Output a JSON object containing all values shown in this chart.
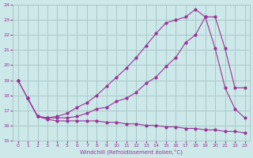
{
  "xlabel": "Windchill (Refroidissement éolien,°C)",
  "ylabel": "",
  "xlim": [
    -0.5,
    23.5
  ],
  "ylim": [
    15,
    24
  ],
  "xticks": [
    0,
    1,
    2,
    3,
    4,
    5,
    6,
    7,
    8,
    9,
    10,
    11,
    12,
    13,
    14,
    15,
    16,
    17,
    18,
    19,
    20,
    21,
    22,
    23
  ],
  "yticks": [
    15,
    16,
    17,
    18,
    19,
    20,
    21,
    22,
    23,
    24
  ],
  "bg_color": "#cce8e8",
  "line_color": "#993399",
  "grid_color": "#aac8c8",
  "line1_x": [
    0,
    1,
    2,
    3,
    4,
    5,
    6,
    7,
    8,
    9,
    10,
    11,
    12,
    13,
    14,
    15,
    16,
    17,
    18,
    19,
    20,
    21,
    22,
    23
  ],
  "line1_y": [
    19.0,
    17.8,
    16.6,
    16.4,
    16.3,
    16.3,
    16.3,
    16.3,
    16.3,
    16.2,
    16.2,
    16.1,
    16.1,
    16.0,
    16.0,
    15.9,
    15.9,
    15.8,
    15.8,
    15.7,
    15.7,
    15.6,
    15.6,
    15.5
  ],
  "line2_x": [
    0,
    1,
    2,
    3,
    4,
    5,
    6,
    7,
    8,
    9,
    10,
    11,
    12,
    13,
    14,
    15,
    16,
    17,
    18,
    19,
    20,
    21,
    22,
    23
  ],
  "line2_y": [
    19.0,
    17.8,
    16.6,
    16.5,
    16.5,
    16.5,
    16.6,
    16.8,
    17.1,
    17.2,
    17.6,
    17.8,
    18.2,
    18.8,
    19.2,
    19.9,
    20.5,
    21.5,
    22.0,
    23.2,
    21.1,
    18.5,
    17.1,
    16.5
  ],
  "line3_x": [
    1,
    2,
    3,
    4,
    5,
    6,
    7,
    8,
    9,
    10,
    11,
    12,
    13,
    14,
    15,
    16,
    17,
    18,
    19,
    20,
    21,
    22,
    23
  ],
  "line3_y": [
    17.8,
    16.6,
    16.5,
    16.6,
    16.8,
    17.2,
    17.5,
    18.0,
    18.6,
    19.2,
    19.8,
    20.5,
    21.3,
    22.1,
    22.8,
    23.0,
    23.2,
    23.7,
    23.2,
    23.2,
    21.1,
    18.5,
    18.5
  ]
}
